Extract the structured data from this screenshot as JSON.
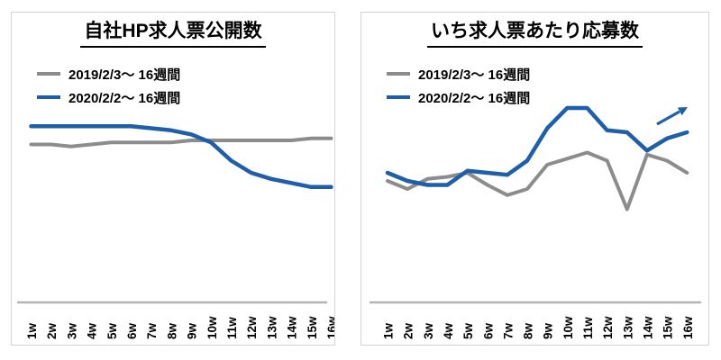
{
  "page": {
    "background": "#ffffff"
  },
  "colors": {
    "text": "#000000",
    "axis_line": "#b3b3b3",
    "panel_border": "#d3d3d3",
    "series_2019": "#8c8c8c",
    "series_2020": "#1f5fa9"
  },
  "chart_data": [
    {
      "type": "line",
      "title": "自社HP求人票公開数",
      "categories": [
        "1w",
        "2w",
        "3w",
        "4w",
        "5w",
        "6w",
        "7w",
        "8w",
        "9w",
        "10w",
        "11w",
        "12w",
        "13w",
        "14w",
        "15w",
        "16w"
      ],
      "series": [
        {
          "id": "2019",
          "name": "2019/2/3〜 16週間",
          "color": "#8c8c8c",
          "values": [
            78,
            78,
            77,
            78,
            79,
            79,
            79,
            79,
            80,
            80,
            80,
            80,
            80,
            80,
            81,
            81
          ]
        },
        {
          "id": "2020",
          "name": "2020/2/2〜 16週間",
          "color": "#1f5fa9",
          "values": [
            87,
            87,
            87,
            87,
            87,
            87,
            86,
            85,
            83,
            79,
            70,
            64,
            61,
            59,
            57,
            57
          ]
        }
      ],
      "xlabel": "",
      "ylabel": "",
      "ylim": [
        0,
        100
      ],
      "y_axis_shown": false,
      "grid": false,
      "legend_position": "top-left",
      "x_tick_rotation": "vertical",
      "annotation": null,
      "note": "values are relative units; no y-axis scale shown in original"
    },
    {
      "type": "line",
      "title": "いち求人票あたり応募数",
      "categories": [
        "1w",
        "2w",
        "3w",
        "4w",
        "5w",
        "6w",
        "7w",
        "8w",
        "9w",
        "10w",
        "11w",
        "12w",
        "13w",
        "14w",
        "15w",
        "16w"
      ],
      "series": [
        {
          "id": "2019",
          "name": "2019/2/3〜 16週間",
          "color": "#8c8c8c",
          "values": [
            60,
            56,
            61,
            62,
            64,
            58,
            53,
            56,
            68,
            71,
            74,
            70,
            46,
            73,
            70,
            64
          ]
        },
        {
          "id": "2020",
          "name": "2020/2/2〜 16週間",
          "color": "#1f5fa9",
          "values": [
            64,
            60,
            58,
            58,
            65,
            64,
            63,
            70,
            86,
            96,
            96,
            85,
            84,
            75,
            81,
            84
          ]
        }
      ],
      "xlabel": "",
      "ylabel": "",
      "ylim": [
        0,
        100
      ],
      "y_axis_shown": false,
      "grid": false,
      "legend_position": "top-left",
      "x_tick_rotation": "vertical",
      "annotation": "upward-trend-arrow",
      "note": "values are relative units; no y-axis scale shown in original"
    }
  ]
}
